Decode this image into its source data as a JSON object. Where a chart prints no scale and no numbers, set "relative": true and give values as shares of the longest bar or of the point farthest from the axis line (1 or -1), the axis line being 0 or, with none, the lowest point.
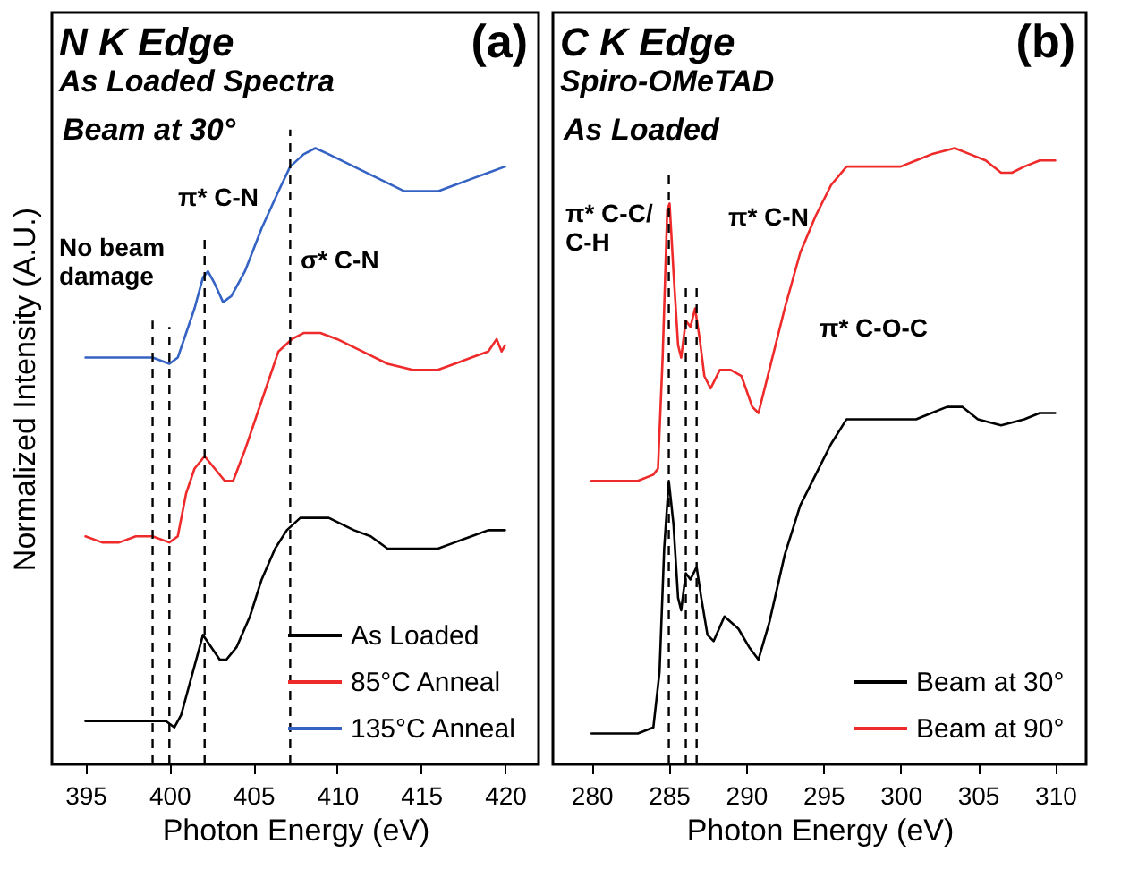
{
  "chart_data": [
    {
      "type": "line",
      "title": "N K Edge",
      "subtitle": "As Loaded Spectra",
      "xlabel": "Photon Energy (eV)",
      "ylabel": "Normalized Intensity (A.U.)",
      "relative": true,
      "xlim": [
        393,
        422
      ],
      "xticks": [
        395,
        400,
        405,
        410,
        415,
        420
      ],
      "legend": "bottom right",
      "grid": false,
      "line_style": "solid",
      "series": [
        {
          "name": "As Loaded",
          "color": "#000000",
          "x": [
            395,
            396,
            397,
            398,
            399,
            399.8,
            400.3,
            400.7,
            401.2,
            401.7,
            402,
            402.5,
            403,
            403.4,
            404,
            404.8,
            405.5,
            406.3,
            407,
            407.8,
            408.5,
            409.5,
            411,
            412,
            413,
            414,
            415,
            416,
            417,
            418,
            419,
            420
          ],
          "values": [
            0.07,
            0.07,
            0.07,
            0.07,
            0.07,
            0.07,
            0.06,
            0.08,
            0.13,
            0.18,
            0.21,
            0.19,
            0.17,
            0.17,
            0.19,
            0.24,
            0.3,
            0.35,
            0.38,
            0.4,
            0.4,
            0.4,
            0.38,
            0.37,
            0.35,
            0.35,
            0.35,
            0.35,
            0.36,
            0.37,
            0.38,
            0.38
          ]
        },
        {
          "name": "85°C Anneal",
          "color": "#ee2a2a",
          "x": [
            395,
            396,
            397,
            398,
            399,
            400,
            400.5,
            401,
            401.5,
            402.1,
            402.7,
            403.3,
            403.8,
            404.5,
            405.5,
            406.5,
            407.3,
            408,
            409,
            410,
            411.5,
            413,
            414.5,
            416,
            417,
            418,
            419,
            419.5,
            419.8,
            420
          ],
          "values": [
            0.37,
            0.36,
            0.36,
            0.37,
            0.37,
            0.36,
            0.37,
            0.44,
            0.48,
            0.5,
            0.48,
            0.46,
            0.46,
            0.51,
            0.59,
            0.67,
            0.69,
            0.7,
            0.7,
            0.69,
            0.67,
            0.65,
            0.64,
            0.64,
            0.65,
            0.66,
            0.67,
            0.69,
            0.67,
            0.68
          ]
        },
        {
          "name": "135°C Anneal",
          "color": "#3563c4",
          "x": [
            395,
            397,
            399,
            400,
            400.5,
            401,
            401.5,
            402,
            402.3,
            402.7,
            403.2,
            403.7,
            404.5,
            405.5,
            406.5,
            407.2,
            408,
            408.7,
            409.5,
            411,
            412.5,
            414,
            415,
            416,
            417,
            418,
            419,
            420
          ],
          "values": [
            0.66,
            0.66,
            0.66,
            0.65,
            0.66,
            0.7,
            0.74,
            0.79,
            0.8,
            0.78,
            0.75,
            0.76,
            0.8,
            0.87,
            0.93,
            0.97,
            0.99,
            1,
            0.99,
            0.97,
            0.95,
            0.93,
            0.93,
            0.93,
            0.94,
            0.95,
            0.96,
            0.97
          ]
        }
      ],
      "ref_lines": [
        {
          "axis": "x",
          "value": 399,
          "line_style": "dashed"
        },
        {
          "axis": "x",
          "value": 400,
          "line_style": "dashed"
        },
        {
          "axis": "x",
          "value": 402.1,
          "line_style": "dashed"
        },
        {
          "axis": "x",
          "value": 407.2,
          "line_style": "dashed"
        }
      ],
      "annotations": [
        "(a)",
        "Beam at 30°",
        "π* C-N",
        "σ* C-N",
        "No beam\ndamage"
      ]
    },
    {
      "type": "line",
      "title": "C K Edge",
      "subtitle": "Spiro-OMeTAD",
      "xlabel": "Photon Energy (eV)",
      "relative": true,
      "xlim": [
        277.5,
        312
      ],
      "xticks": [
        280,
        285,
        290,
        295,
        300,
        305,
        310
      ],
      "legend": "bottom right",
      "grid": false,
      "line_style": "solid",
      "series": [
        {
          "name": "Beam at 30°",
          "color": "#000000",
          "x": [
            280,
            283,
            284,
            284.4,
            284.7,
            285,
            285.3,
            285.6,
            285.8,
            286.1,
            286.4,
            286.8,
            287.1,
            287.5,
            287.9,
            288.6,
            289.5,
            290.2,
            290.8,
            291.5,
            292.5,
            293.5,
            294.5,
            295.5,
            296.5,
            297.5,
            299,
            300,
            301,
            302,
            303,
            304,
            305,
            306.5,
            308,
            309,
            310
          ],
          "values": [
            0.05,
            0.05,
            0.06,
            0.15,
            0.35,
            0.46,
            0.39,
            0.27,
            0.25,
            0.31,
            0.3,
            0.32,
            0.27,
            0.21,
            0.2,
            0.24,
            0.22,
            0.19,
            0.17,
            0.23,
            0.34,
            0.42,
            0.47,
            0.52,
            0.56,
            0.56,
            0.56,
            0.56,
            0.56,
            0.57,
            0.58,
            0.58,
            0.56,
            0.55,
            0.56,
            0.57,
            0.57
          ]
        },
        {
          "name": "Beam at 90°",
          "color": "#ee2a2a",
          "x": [
            280,
            283,
            284,
            284.3,
            284.6,
            284.9,
            285.05,
            285.3,
            285.6,
            285.8,
            286.1,
            286.4,
            286.7,
            287,
            287.3,
            287.7,
            288.3,
            289,
            289.7,
            290.4,
            290.8,
            291.5,
            292.5,
            293.5,
            294.5,
            295.5,
            296.5,
            297.5,
            299,
            300,
            301,
            302,
            303.5,
            304.5,
            305.5,
            306.5,
            307.2,
            308,
            309,
            310
          ],
          "values": [
            0.46,
            0.46,
            0.47,
            0.48,
            0.66,
            0.9,
            0.91,
            0.8,
            0.68,
            0.66,
            0.72,
            0.71,
            0.74,
            0.69,
            0.63,
            0.61,
            0.64,
            0.64,
            0.63,
            0.58,
            0.57,
            0.64,
            0.74,
            0.83,
            0.89,
            0.94,
            0.97,
            0.97,
            0.97,
            0.97,
            0.98,
            0.99,
            1,
            0.99,
            0.98,
            0.96,
            0.96,
            0.97,
            0.98,
            0.98
          ]
        }
      ],
      "ref_lines": [
        {
          "axis": "x",
          "value": 285,
          "line_style": "dashed"
        },
        {
          "axis": "x",
          "value": 286.1,
          "line_style": "dashed"
        },
        {
          "axis": "x",
          "value": 286.8,
          "line_style": "dashed"
        }
      ],
      "annotations": [
        "(b)",
        "As Loaded",
        "π* C-C/\nC-H",
        "π* C-N",
        "π* C-O-C"
      ]
    }
  ]
}
